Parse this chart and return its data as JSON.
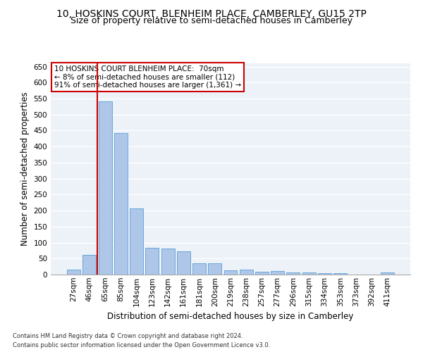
{
  "title1": "10, HOSKINS COURT, BLENHEIM PLACE, CAMBERLEY, GU15 2TP",
  "title2": "Size of property relative to semi-detached houses in Camberley",
  "xlabel": "Distribution of semi-detached houses by size in Camberley",
  "ylabel": "Number of semi-detached properties",
  "categories": [
    "27sqm",
    "46sqm",
    "65sqm",
    "85sqm",
    "104sqm",
    "123sqm",
    "142sqm",
    "161sqm",
    "181sqm",
    "200sqm",
    "219sqm",
    "238sqm",
    "257sqm",
    "277sqm",
    "296sqm",
    "315sqm",
    "334sqm",
    "353sqm",
    "373sqm",
    "392sqm",
    "411sqm"
  ],
  "values": [
    15,
    62,
    542,
    443,
    207,
    83,
    82,
    72,
    35,
    35,
    14,
    15,
    9,
    10,
    6,
    6,
    5,
    5,
    0,
    0,
    6
  ],
  "bar_color": "#aec6e8",
  "bar_edge_color": "#5a9fd4",
  "red_line_x": 1.5,
  "annotation_text": "10 HOSKINS COURT BLENHEIM PLACE:  70sqm\n← 8% of semi-detached houses are smaller (112)\n91% of semi-detached houses are larger (1,361) →",
  "annotation_box_color": "#ffffff",
  "annotation_box_edge_color": "#cc0000",
  "red_line_color": "#cc0000",
  "ylim": [
    0,
    660
  ],
  "yticks": [
    0,
    50,
    100,
    150,
    200,
    250,
    300,
    350,
    400,
    450,
    500,
    550,
    600,
    650
  ],
  "footnote1": "Contains HM Land Registry data © Crown copyright and database right 2024.",
  "footnote2": "Contains public sector information licensed under the Open Government Licence v3.0.",
  "bg_color": "#edf2f9",
  "grid_color": "#ffffff",
  "title_fontsize": 10,
  "subtitle_fontsize": 9,
  "axis_label_fontsize": 8.5,
  "tick_fontsize": 7.5,
  "footnote_fontsize": 6,
  "annotation_fontsize": 7.5
}
